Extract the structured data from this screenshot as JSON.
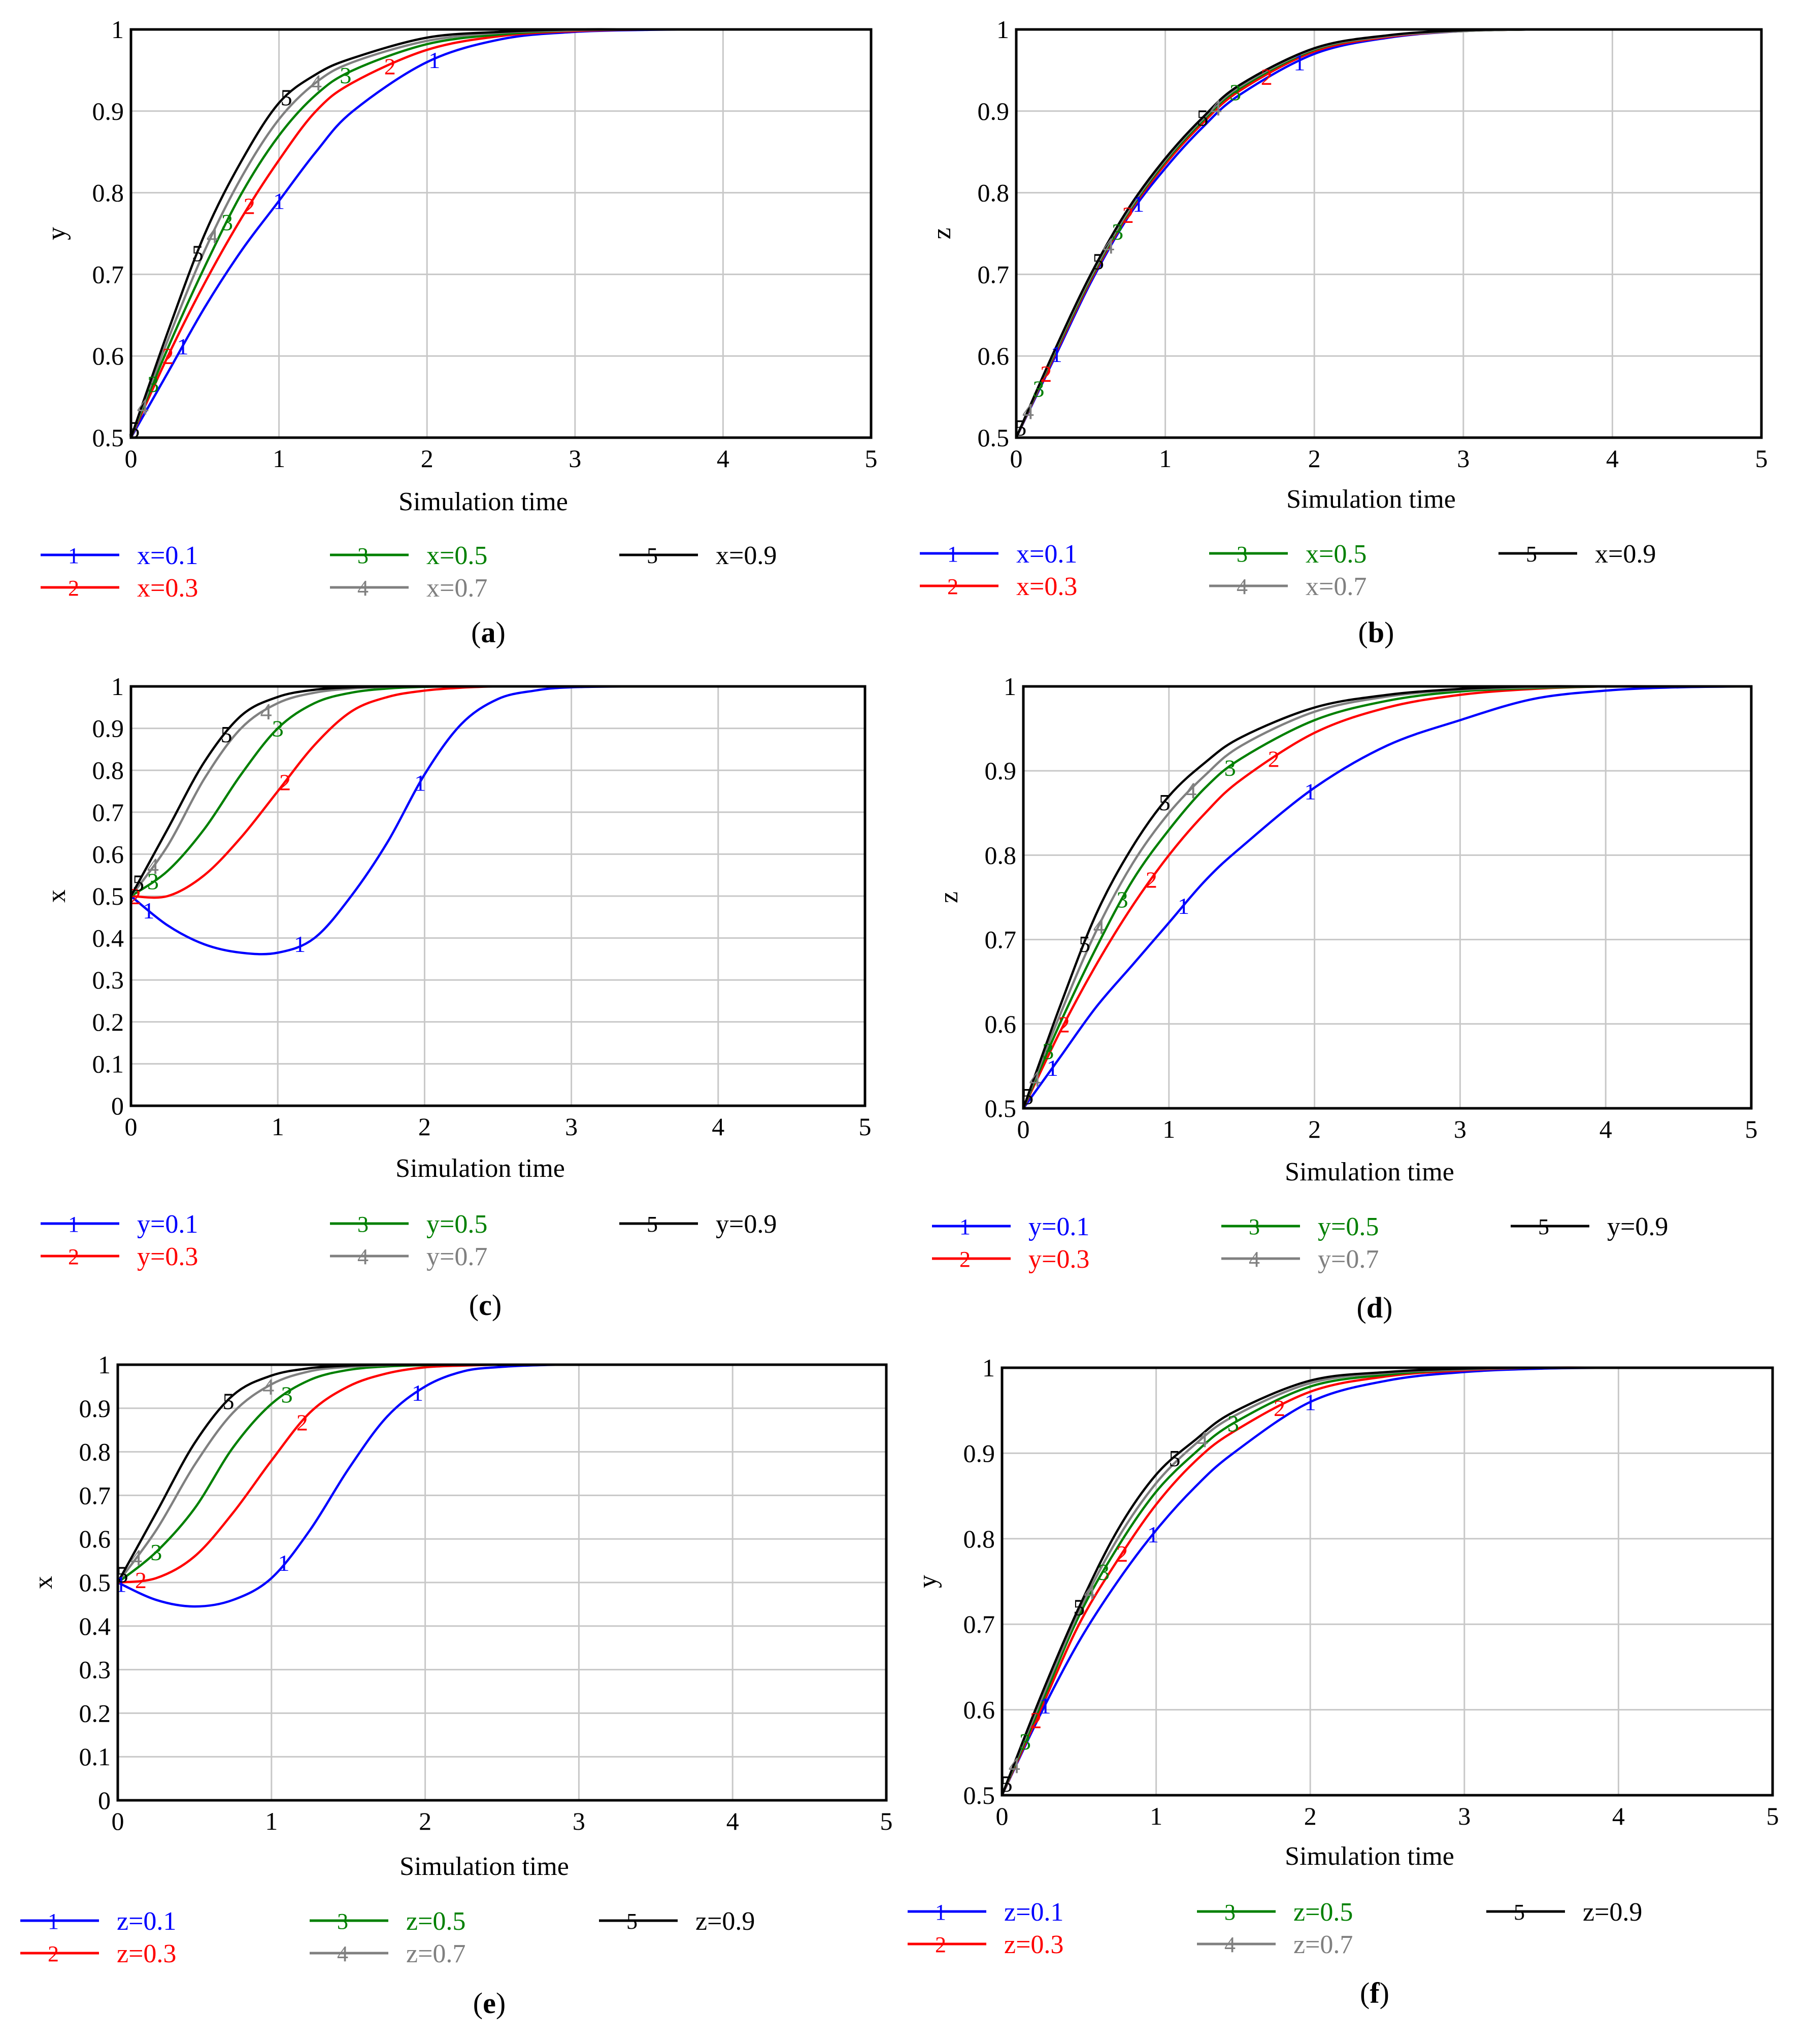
{
  "colors": {
    "1": "#0000ff",
    "2": "#ff0000",
    "3": "#008000",
    "4": "#808080",
    "5": "#000000"
  },
  "chart_data": [
    {
      "type": "line",
      "panel": "a",
      "caption_letter": "a",
      "title": "",
      "xlabel": "Simulation time",
      "ylabel": "y",
      "xlim": [
        0,
        5
      ],
      "ylim": [
        0.5,
        1
      ],
      "xticks": [
        "0",
        "1",
        "2",
        "3",
        "4",
        "5"
      ],
      "yticks": [
        "0.5",
        "0.6",
        "0.7",
        "0.8",
        "0.9",
        "1"
      ],
      "grid": true,
      "x": [
        0,
        0.25,
        0.5,
        0.75,
        1,
        1.25,
        1.5,
        2,
        2.5,
        3,
        3.5,
        4,
        4.5,
        5
      ],
      "series": [
        {
          "id": "1",
          "name": "x=0.1",
          "values": [
            0.5,
            0.58,
            0.66,
            0.73,
            0.79,
            0.85,
            0.9,
            0.96,
            0.988,
            0.997,
            0.9995,
            1,
            1,
            1
          ],
          "labels_at": [
            0.35,
            1.0,
            2.05
          ]
        },
        {
          "id": "2",
          "name": "x=0.3",
          "values": [
            0.5,
            0.6,
            0.69,
            0.77,
            0.84,
            0.9,
            0.935,
            0.975,
            0.992,
            0.998,
            1,
            1,
            1,
            1
          ],
          "labels_at": [
            0.25,
            0.8,
            1.75
          ]
        },
        {
          "id": "3",
          "name": "x=0.5",
          "values": [
            0.5,
            0.61,
            0.71,
            0.8,
            0.87,
            0.92,
            0.95,
            0.982,
            0.994,
            0.999,
            1,
            1,
            1,
            1
          ],
          "labels_at": [
            0.15,
            0.65,
            1.45
          ]
        },
        {
          "id": "4",
          "name": "x=0.7",
          "values": [
            0.5,
            0.62,
            0.73,
            0.82,
            0.89,
            0.935,
            0.96,
            0.986,
            0.996,
            0.999,
            1,
            1,
            1,
            1
          ],
          "labels_at": [
            0.08,
            0.55,
            1.25
          ]
        },
        {
          "id": "5",
          "name": "x=0.9",
          "values": [
            0.5,
            0.63,
            0.75,
            0.84,
            0.91,
            0.945,
            0.965,
            0.99,
            0.997,
            1,
            1,
            1,
            1,
            1
          ],
          "labels_at": [
            0.02,
            0.45,
            1.05
          ]
        }
      ]
    },
    {
      "type": "line",
      "panel": "b",
      "caption_letter": "b",
      "title": "",
      "xlabel": "Simulation time",
      "ylabel": "z",
      "xlim": [
        0,
        5
      ],
      "ylim": [
        0.5,
        1
      ],
      "xticks": [
        "0",
        "1",
        "2",
        "3",
        "4",
        "5"
      ],
      "yticks": [
        "0.5",
        "0.6",
        "0.7",
        "0.8",
        "0.9",
        "1"
      ],
      "grid": true,
      "x": [
        0,
        0.25,
        0.5,
        0.75,
        1,
        1.25,
        1.5,
        2,
        2.5,
        3,
        3.5,
        4,
        4.5,
        5
      ],
      "series": [
        {
          "id": "1",
          "name": "x=0.1",
          "values": [
            0.5,
            0.595,
            0.69,
            0.77,
            0.83,
            0.88,
            0.92,
            0.97,
            0.99,
            0.998,
            1,
            1,
            1,
            1
          ],
          "labels_at": [
            0.27,
            0.82,
            1.9
          ]
        },
        {
          "id": "2",
          "name": "x=0.3",
          "values": [
            0.5,
            0.598,
            0.693,
            0.773,
            0.835,
            0.885,
            0.925,
            0.973,
            0.991,
            0.998,
            1,
            1,
            1,
            1
          ],
          "labels_at": [
            0.2,
            0.75,
            1.68
          ]
        },
        {
          "id": "3",
          "name": "x=0.5",
          "values": [
            0.5,
            0.6,
            0.695,
            0.775,
            0.838,
            0.888,
            0.928,
            0.975,
            0.992,
            0.998,
            1,
            1,
            1,
            1
          ],
          "labels_at": [
            0.15,
            0.68,
            1.47
          ]
        },
        {
          "id": "4",
          "name": "x=0.7",
          "values": [
            0.5,
            0.602,
            0.697,
            0.777,
            0.84,
            0.89,
            0.93,
            0.976,
            0.992,
            0.998,
            1,
            1,
            1,
            1
          ],
          "labels_at": [
            0.08,
            0.62,
            1.34
          ]
        },
        {
          "id": "5",
          "name": "x=0.9",
          "values": [
            0.5,
            0.604,
            0.7,
            0.78,
            0.842,
            0.892,
            0.932,
            0.977,
            0.993,
            0.999,
            1,
            1,
            1,
            1
          ],
          "labels_at": [
            0.03,
            0.55,
            1.25
          ]
        }
      ]
    },
    {
      "type": "line",
      "panel": "c",
      "caption_letter": "c",
      "title": "",
      "xlabel": "Simulation time",
      "ylabel": "x",
      "xlim": [
        0,
        5
      ],
      "ylim": [
        0,
        1
      ],
      "xticks": [
        "0",
        "1",
        "2",
        "3",
        "4",
        "5"
      ],
      "yticks": [
        "0",
        "0.1",
        "0.2",
        "0.3",
        "0.4",
        "0.5",
        "0.6",
        "0.7",
        "0.8",
        "0.9",
        "1"
      ],
      "grid": true,
      "x": [
        0,
        0.25,
        0.5,
        0.75,
        1,
        1.25,
        1.5,
        1.75,
        2,
        2.25,
        2.5,
        2.75,
        3,
        3.5,
        4,
        4.5,
        5
      ],
      "series": [
        {
          "id": "1",
          "name": "y=0.1",
          "values": [
            0.5,
            0.43,
            0.385,
            0.365,
            0.365,
            0.4,
            0.5,
            0.63,
            0.79,
            0.91,
            0.97,
            0.99,
            0.998,
            1,
            1,
            1,
            1
          ],
          "labels_at": [
            0.12,
            1.15,
            1.97
          ]
        },
        {
          "id": "2",
          "name": "y=0.3",
          "values": [
            0.5,
            0.5,
            0.55,
            0.64,
            0.75,
            0.86,
            0.94,
            0.975,
            0.99,
            0.997,
            1,
            1,
            1,
            1,
            1,
            1,
            1
          ],
          "labels_at": [
            0.03,
            1.05
          ]
        },
        {
          "id": "3",
          "name": "y=0.5",
          "values": [
            0.5,
            0.56,
            0.66,
            0.79,
            0.9,
            0.96,
            0.985,
            0.995,
            0.999,
            1,
            1,
            1,
            1,
            1,
            1,
            1,
            1
          ],
          "labels_at": [
            0.15,
            1.0
          ]
        },
        {
          "id": "4",
          "name": "y=0.7",
          "values": [
            0.5,
            0.62,
            0.78,
            0.9,
            0.96,
            0.985,
            0.995,
            0.999,
            1,
            1,
            1,
            1,
            1,
            1,
            1,
            1,
            1
          ],
          "labels_at": [
            0.15,
            0.92
          ]
        },
        {
          "id": "5",
          "name": "y=0.9",
          "values": [
            0.5,
            0.66,
            0.82,
            0.93,
            0.975,
            0.992,
            0.998,
            1,
            1,
            1,
            1,
            1,
            1,
            1,
            1,
            1,
            1
          ],
          "labels_at": [
            0.05,
            0.65
          ]
        }
      ]
    },
    {
      "type": "line",
      "panel": "d",
      "caption_letter": "d",
      "title": "",
      "xlabel": "Simulation time",
      "ylabel": "z",
      "xlim": [
        0,
        5
      ],
      "ylim": [
        0.5,
        1
      ],
      "xticks": [
        "0",
        "1",
        "2",
        "3",
        "4",
        "5"
      ],
      "yticks": [
        "0.5",
        "0.6",
        "0.7",
        "0.8",
        "0.9",
        "1"
      ],
      "grid": true,
      "x": [
        0,
        0.25,
        0.5,
        0.75,
        1,
        1.25,
        1.5,
        2,
        2.5,
        3,
        3.5,
        4,
        4.5,
        5
      ],
      "series": [
        {
          "id": "1",
          "name": "y=0.1",
          "values": [
            0.5,
            0.56,
            0.62,
            0.67,
            0.72,
            0.77,
            0.81,
            0.88,
            0.93,
            0.96,
            0.985,
            0.995,
            0.999,
            1
          ],
          "labels_at": [
            0.2,
            1.1,
            1.97
          ]
        },
        {
          "id": "2",
          "name": "y=0.3",
          "values": [
            0.5,
            0.59,
            0.67,
            0.74,
            0.8,
            0.85,
            0.89,
            0.945,
            0.975,
            0.99,
            0.997,
            1,
            1,
            1
          ],
          "labels_at": [
            0.28,
            0.88,
            1.72
          ]
        },
        {
          "id": "3",
          "name": "y=0.5",
          "values": [
            0.5,
            0.6,
            0.69,
            0.77,
            0.83,
            0.88,
            0.915,
            0.96,
            0.983,
            0.994,
            0.998,
            1,
            1,
            1
          ],
          "labels_at": [
            0.17,
            0.68,
            1.42
          ]
        },
        {
          "id": "4",
          "name": "y=0.7",
          "values": [
            0.5,
            0.61,
            0.71,
            0.79,
            0.85,
            0.895,
            0.93,
            0.97,
            0.988,
            0.996,
            0.999,
            1,
            1,
            1
          ],
          "labels_at": [
            0.08,
            0.52,
            1.15
          ]
        },
        {
          "id": "5",
          "name": "y=0.9",
          "values": [
            0.5,
            0.62,
            0.73,
            0.81,
            0.87,
            0.91,
            0.94,
            0.975,
            0.99,
            0.997,
            1,
            1,
            1,
            1
          ],
          "labels_at": [
            0.03,
            0.42,
            0.97
          ]
        }
      ]
    },
    {
      "type": "line",
      "panel": "e",
      "caption_letter": "e",
      "title": "",
      "xlabel": "Simulation time",
      "ylabel": "x",
      "xlim": [
        0,
        5
      ],
      "ylim": [
        0,
        1
      ],
      "xticks": [
        "0",
        "1",
        "2",
        "3",
        "4",
        "5"
      ],
      "yticks": [
        "0",
        "0.1",
        "0.2",
        "0.3",
        "0.4",
        "0.5",
        "0.6",
        "0.7",
        "0.8",
        "0.9",
        "1"
      ],
      "grid": true,
      "x": [
        0,
        0.25,
        0.5,
        0.75,
        1,
        1.25,
        1.5,
        1.75,
        2,
        2.25,
        2.5,
        2.75,
        3,
        3.5,
        4,
        4.5,
        5
      ],
      "series": [
        {
          "id": "1",
          "name": "z=0.1",
          "values": [
            0.5,
            0.46,
            0.445,
            0.46,
            0.51,
            0.62,
            0.76,
            0.88,
            0.95,
            0.985,
            0.995,
            0.999,
            1,
            1,
            1,
            1,
            1
          ],
          "labels_at": [
            0.02,
            1.08,
            1.95
          ]
        },
        {
          "id": "2",
          "name": "z=0.3",
          "values": [
            0.5,
            0.51,
            0.56,
            0.66,
            0.78,
            0.89,
            0.95,
            0.98,
            0.994,
            0.998,
            1,
            1,
            1,
            1,
            1,
            1,
            1
          ],
          "labels_at": [
            0.15,
            1.2
          ]
        },
        {
          "id": "3",
          "name": "z=0.5",
          "values": [
            0.5,
            0.57,
            0.67,
            0.81,
            0.91,
            0.965,
            0.988,
            0.996,
            0.999,
            1,
            1,
            1,
            1,
            1,
            1,
            1,
            1
          ],
          "labels_at": [
            0.25,
            1.1
          ]
        },
        {
          "id": "4",
          "name": "z=0.7",
          "values": [
            0.5,
            0.62,
            0.77,
            0.89,
            0.955,
            0.985,
            0.995,
            0.999,
            1,
            1,
            1,
            1,
            1,
            1,
            1,
            1,
            1
          ],
          "labels_at": [
            0.12,
            0.98
          ]
        },
        {
          "id": "5",
          "name": "z=0.9",
          "values": [
            0.5,
            0.66,
            0.82,
            0.93,
            0.975,
            0.992,
            0.998,
            1,
            1,
            1,
            1,
            1,
            1,
            1,
            1,
            1,
            1
          ],
          "labels_at": [
            0.03,
            0.72
          ]
        }
      ]
    },
    {
      "type": "line",
      "panel": "f",
      "caption_letter": "f",
      "title": "",
      "xlabel": "Simulation time",
      "ylabel": "y",
      "xlim": [
        0,
        5
      ],
      "ylim": [
        0.5,
        1
      ],
      "xticks": [
        "0",
        "1",
        "2",
        "3",
        "4",
        "5"
      ],
      "yticks": [
        "0.5",
        "0.6",
        "0.7",
        "0.8",
        "0.9",
        "1"
      ],
      "grid": true,
      "x": [
        0,
        0.25,
        0.5,
        0.75,
        1,
        1.25,
        1.5,
        2,
        2.5,
        3,
        3.5,
        4,
        4.5,
        5
      ],
      "series": [
        {
          "id": "1",
          "name": "z=0.1",
          "values": [
            0.5,
            0.595,
            0.68,
            0.75,
            0.81,
            0.86,
            0.9,
            0.96,
            0.985,
            0.995,
            0.999,
            1,
            1,
            1
          ],
          "labels_at": [
            0.28,
            0.98,
            2.0
          ]
        },
        {
          "id": "2",
          "name": "z=0.3",
          "values": [
            0.5,
            0.6,
            0.7,
            0.775,
            0.84,
            0.89,
            0.925,
            0.972,
            0.99,
            0.997,
            1,
            1,
            1,
            1
          ],
          "labels_at": [
            0.22,
            0.78,
            1.8
          ]
        },
        {
          "id": "3",
          "name": "z=0.5",
          "values": [
            0.5,
            0.605,
            0.71,
            0.79,
            0.855,
            0.9,
            0.935,
            0.978,
            0.992,
            0.998,
            1,
            1,
            1,
            1
          ],
          "labels_at": [
            0.15,
            0.66,
            1.5
          ]
        },
        {
          "id": "4",
          "name": "z=0.7",
          "values": [
            0.5,
            0.61,
            0.715,
            0.8,
            0.865,
            0.91,
            0.943,
            0.982,
            0.994,
            0.998,
            1,
            1,
            1,
            1
          ],
          "labels_at": [
            0.08,
            0.57,
            1.3
          ]
        },
        {
          "id": "5",
          "name": "z=0.9",
          "values": [
            0.5,
            0.615,
            0.72,
            0.81,
            0.875,
            0.915,
            0.948,
            0.985,
            0.995,
            0.999,
            1,
            1,
            1,
            1
          ],
          "labels_at": [
            0.03,
            0.5,
            1.12
          ]
        }
      ]
    }
  ]
}
